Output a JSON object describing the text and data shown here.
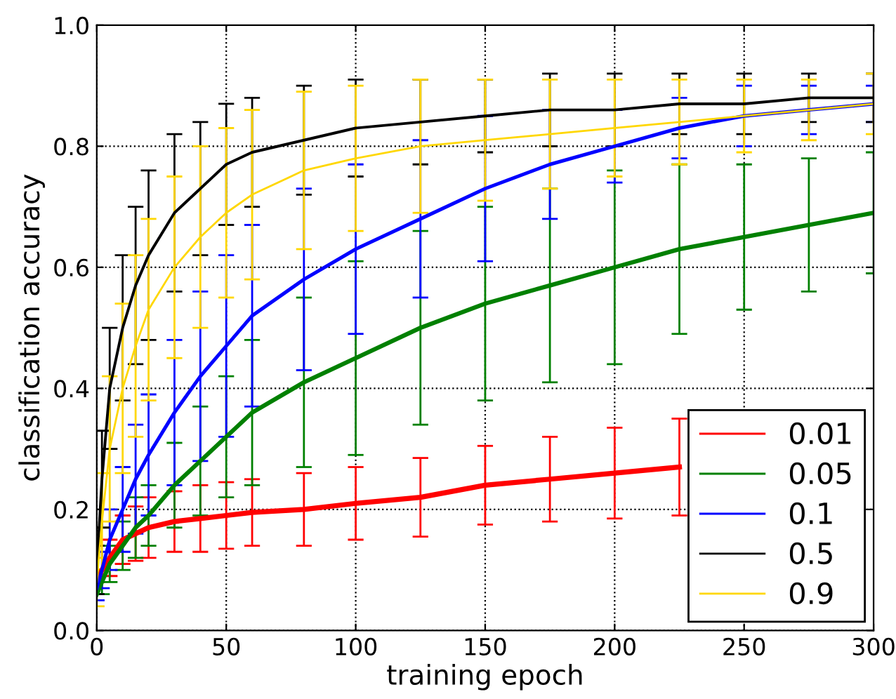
{
  "chart_data": {
    "type": "line",
    "xlabel": "training epoch",
    "ylabel": "classification accuracy",
    "x": [
      0,
      2,
      5,
      10,
      15,
      20,
      30,
      40,
      50,
      60,
      80,
      100,
      125,
      150,
      175,
      200,
      225,
      250,
      275,
      300
    ],
    "xlim": [
      0,
      300
    ],
    "xticks": [
      0,
      50,
      100,
      150,
      200,
      250,
      300
    ],
    "ylim": [
      0,
      1
    ],
    "yticks": [
      {
        "value": 0,
        "label": "0.0"
      },
      {
        "value": 0.2,
        "label": "0.2"
      },
      {
        "value": 0.4,
        "label": "0.4"
      },
      {
        "value": 0.6,
        "label": "0.6"
      },
      {
        "value": 0.8,
        "label": "0.8"
      },
      {
        "value": 1,
        "label": "1.0"
      }
    ],
    "grid": true,
    "legend": "bottom right",
    "marker": "none",
    "line_style": "solid",
    "series": [
      {
        "name": "0.01",
        "color": "#ff0000",
        "values": [
          0.08,
          0.1,
          0.12,
          0.15,
          0.16,
          0.17,
          0.18,
          0.185,
          0.19,
          0.195,
          0.2,
          0.21,
          0.22,
          0.24,
          0.25,
          0.26,
          0.27,
          null,
          null,
          null
        ],
        "errors": [
          null,
          null,
          0.03,
          0.04,
          0.045,
          0.05,
          0.05,
          0.055,
          0.055,
          0.055,
          0.06,
          0.06,
          0.065,
          0.065,
          0.07,
          0.075,
          0.08,
          null,
          null,
          null
        ]
      },
      {
        "name": "0.05",
        "color": "#008000",
        "values": [
          0.06,
          0.08,
          0.11,
          0.14,
          0.17,
          0.19,
          0.24,
          0.28,
          0.32,
          0.36,
          0.41,
          0.45,
          0.5,
          0.54,
          0.57,
          0.6,
          0.63,
          0.65,
          0.67,
          0.69
        ],
        "errors": [
          null,
          0.02,
          0.03,
          0.04,
          0.05,
          0.05,
          0.07,
          0.09,
          0.1,
          0.12,
          0.14,
          0.16,
          0.16,
          0.16,
          0.16,
          0.16,
          0.14,
          0.12,
          0.11,
          0.1
        ]
      },
      {
        "name": "0.1",
        "color": "#0000ff",
        "values": [
          0.07,
          0.1,
          0.15,
          0.2,
          0.25,
          0.29,
          0.36,
          0.42,
          0.47,
          0.52,
          0.58,
          0.63,
          0.68,
          0.73,
          0.77,
          0.8,
          0.83,
          0.85,
          0.86,
          0.87
        ],
        "errors": [
          0.02,
          0.03,
          0.05,
          0.07,
          0.09,
          0.1,
          0.12,
          0.14,
          0.15,
          0.15,
          0.15,
          0.14,
          0.13,
          0.12,
          0.09,
          0.06,
          0.05,
          0.05,
          0.04,
          0.03
        ]
      },
      {
        "name": "0.5",
        "color": "#000000",
        "values": [
          0.1,
          0.25,
          0.4,
          0.5,
          0.57,
          0.62,
          0.69,
          0.73,
          0.77,
          0.79,
          0.81,
          0.83,
          0.84,
          0.85,
          0.86,
          0.86,
          0.87,
          0.87,
          0.88,
          0.88
        ],
        "errors": [
          0.04,
          0.08,
          0.1,
          0.12,
          0.13,
          0.14,
          0.13,
          0.11,
          0.1,
          0.09,
          0.09,
          0.08,
          0.07,
          0.06,
          0.06,
          0.06,
          0.05,
          0.05,
          0.04,
          0.04
        ]
      },
      {
        "name": "0.9",
        "color": "#ffd700",
        "values": [
          0.08,
          0.18,
          0.3,
          0.4,
          0.47,
          0.53,
          0.6,
          0.65,
          0.69,
          0.72,
          0.76,
          0.78,
          0.8,
          0.81,
          0.82,
          0.83,
          0.84,
          0.85,
          0.86,
          0.87
        ],
        "errors": [
          0.04,
          0.08,
          0.12,
          0.14,
          0.15,
          0.15,
          0.15,
          0.15,
          0.14,
          0.14,
          0.13,
          0.12,
          0.11,
          0.1,
          0.09,
          0.08,
          0.07,
          0.06,
          0.05,
          0.05
        ]
      }
    ]
  }
}
